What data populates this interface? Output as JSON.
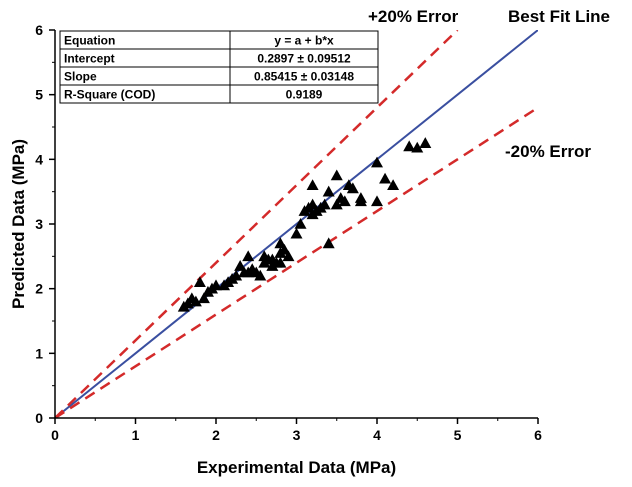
{
  "chart_data": {
    "type": "scatter",
    "xlabel": "Experimental Data (MPa)",
    "ylabel": "Predicted Data (MPa)",
    "xlim": [
      0,
      6
    ],
    "ylim": [
      0,
      6
    ],
    "xticks": [
      "0",
      "1",
      "2",
      "3",
      "4",
      "5",
      "6"
    ],
    "yticks": [
      "0",
      "1",
      "2",
      "3",
      "4",
      "5",
      "6"
    ],
    "grid": false,
    "series": [
      {
        "marker": "triangle",
        "color": "#000000",
        "points": [
          [
            1.6,
            1.72
          ],
          [
            1.65,
            1.77
          ],
          [
            1.7,
            1.85
          ],
          [
            1.75,
            1.8
          ],
          [
            1.8,
            2.1
          ],
          [
            1.85,
            1.85
          ],
          [
            1.9,
            1.95
          ],
          [
            1.95,
            2.0
          ],
          [
            2.0,
            2.05
          ],
          [
            2.1,
            2.05
          ],
          [
            2.15,
            2.1
          ],
          [
            2.2,
            2.15
          ],
          [
            2.25,
            2.2
          ],
          [
            2.3,
            2.35
          ],
          [
            2.35,
            2.25
          ],
          [
            2.4,
            2.25
          ],
          [
            2.4,
            2.5
          ],
          [
            2.45,
            2.3
          ],
          [
            2.5,
            2.25
          ],
          [
            2.55,
            2.2
          ],
          [
            2.6,
            2.4
          ],
          [
            2.6,
            2.5
          ],
          [
            2.65,
            2.45
          ],
          [
            2.7,
            2.35
          ],
          [
            2.7,
            2.45
          ],
          [
            2.75,
            2.4
          ],
          [
            2.8,
            2.4
          ],
          [
            2.8,
            2.55
          ],
          [
            2.8,
            2.7
          ],
          [
            2.85,
            2.6
          ],
          [
            2.9,
            2.5
          ],
          [
            3.0,
            2.85
          ],
          [
            3.05,
            3.0
          ],
          [
            3.1,
            3.2
          ],
          [
            3.15,
            3.25
          ],
          [
            3.2,
            3.15
          ],
          [
            3.2,
            3.3
          ],
          [
            3.2,
            3.6
          ],
          [
            3.25,
            3.2
          ],
          [
            3.3,
            3.25
          ],
          [
            3.35,
            3.3
          ],
          [
            3.4,
            2.7
          ],
          [
            3.4,
            3.5
          ],
          [
            3.5,
            3.3
          ],
          [
            3.5,
            3.75
          ],
          [
            3.55,
            3.4
          ],
          [
            3.6,
            3.35
          ],
          [
            3.65,
            3.6
          ],
          [
            3.7,
            3.55
          ],
          [
            3.8,
            3.35
          ],
          [
            3.8,
            3.4
          ],
          [
            4.0,
            3.35
          ],
          [
            4.0,
            3.95
          ],
          [
            4.1,
            3.7
          ],
          [
            4.2,
            3.6
          ],
          [
            4.4,
            4.2
          ],
          [
            4.5,
            4.18
          ],
          [
            4.6,
            4.25
          ]
        ]
      }
    ],
    "lines": [
      {
        "label": "Best Fit Line",
        "color": "#3a4fa0",
        "style": "solid",
        "x": [
          0,
          6
        ],
        "y": [
          0,
          6
        ]
      },
      {
        "label": "+20% Error",
        "color": "#d42a2a",
        "style": "dashed",
        "x": [
          0,
          5
        ],
        "y": [
          0,
          6
        ]
      },
      {
        "label": "-20% Error",
        "color": "#d42a2a",
        "style": "dashed",
        "x": [
          0,
          6
        ],
        "y": [
          0,
          4.8
        ]
      }
    ],
    "annotations": [
      {
        "text": "+20% Error"
      },
      {
        "text": "Best Fit Line"
      },
      {
        "text": "-20% Error"
      }
    ],
    "stats_table": [
      [
        "Equation",
        "y = a + b*x"
      ],
      [
        "Intercept",
        "0.2897 ± 0.09512"
      ],
      [
        "Slope",
        "0.85415 ± 0.03148"
      ],
      [
        "R-Square (COD)",
        "0.9189"
      ]
    ]
  }
}
